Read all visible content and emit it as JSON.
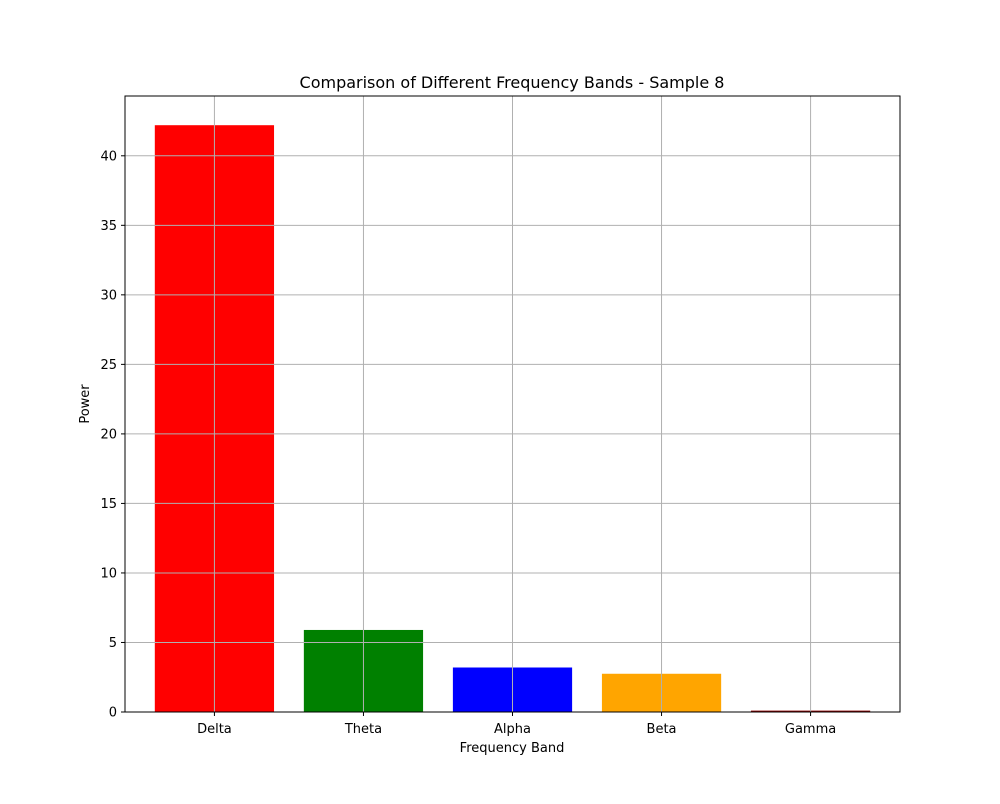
{
  "chart_data": {
    "type": "bar",
    "title": "Comparison of Different Frequency Bands - Sample 8",
    "xlabel": "Frequency Band",
    "ylabel": "Power",
    "categories": [
      "Delta",
      "Theta",
      "Alpha",
      "Beta",
      "Gamma"
    ],
    "values": [
      42.2,
      5.9,
      3.2,
      2.75,
      0.1
    ],
    "colors": [
      "#ff0000",
      "#008000",
      "#0000ff",
      "#ffa500",
      "#8b0000"
    ],
    "yticks": [
      0,
      5,
      10,
      15,
      20,
      25,
      30,
      35,
      40
    ],
    "ytick_labels": [
      "0",
      "5",
      "10",
      "15",
      "20",
      "25",
      "30",
      "35",
      "40"
    ],
    "ylim": [
      0,
      44.3
    ],
    "grid": true,
    "legend": "none"
  }
}
